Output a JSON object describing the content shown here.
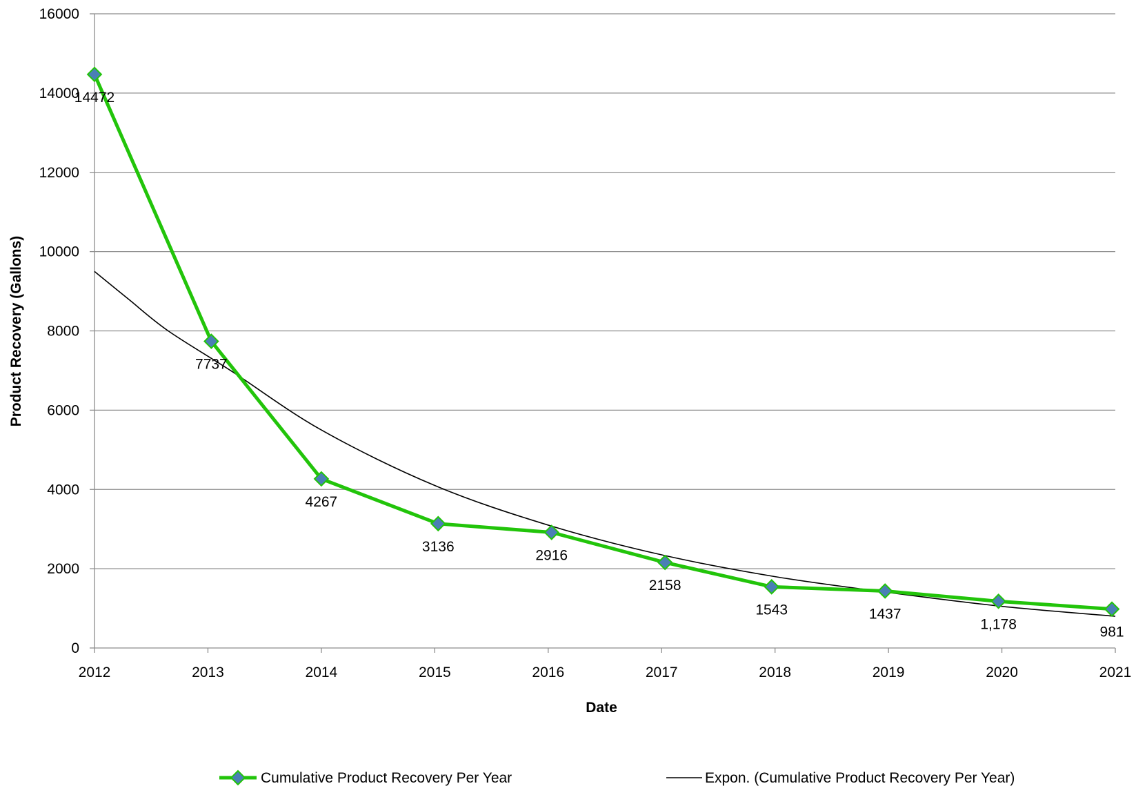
{
  "chart_data": {
    "type": "line",
    "x": [
      2012,
      2013,
      2014,
      2015,
      2016,
      2017,
      2018,
      2019,
      2020,
      2021
    ],
    "xlabel": "Date",
    "ylabel": "Product Recovery (Gallons)",
    "xlim": [
      2012,
      2021
    ],
    "ylim": [
      0,
      16000
    ],
    "y_ticks": [
      "0",
      "2000",
      "4000",
      "6000",
      "8000",
      "10000",
      "12000",
      "14000",
      "16000"
    ],
    "x_ticks": [
      "2012",
      "2013",
      "2014",
      "2015",
      "2016",
      "2017",
      "2018",
      "2019",
      "2020",
      "2021"
    ],
    "grid": true,
    "legend_position": "bottom",
    "series": [
      {
        "name": "Cumulative Product Recovery Per Year",
        "color": "#22c40a",
        "marker_color": "#4a7fb5",
        "points": [
          {
            "x": 2012.0,
            "y": 14472,
            "label": "14472"
          },
          {
            "x": 2013.03,
            "y": 7737,
            "label": "7737"
          },
          {
            "x": 2014.0,
            "y": 4267,
            "label": "4267"
          },
          {
            "x": 2015.03,
            "y": 3136,
            "label": "3136"
          },
          {
            "x": 2016.03,
            "y": 2916,
            "label": "2916"
          },
          {
            "x": 2017.03,
            "y": 2158,
            "label": "2158"
          },
          {
            "x": 2017.97,
            "y": 1543,
            "label": "1543"
          },
          {
            "x": 2018.97,
            "y": 1437,
            "label": "1437"
          },
          {
            "x": 2019.97,
            "y": 1178,
            "label": "1,178"
          },
          {
            "x": 2020.97,
            "y": 981,
            "label": "981"
          }
        ]
      },
      {
        "name": "Expon. (Cumulative Product Recovery Per Year)",
        "color": "#000000",
        "type": "trendline",
        "points": [
          {
            "x": 2012.0,
            "y": 9500
          },
          {
            "x": 2012.3,
            "y": 8800
          },
          {
            "x": 2012.65,
            "y": 8000
          },
          {
            "x": 2013.2,
            "y": 7000
          },
          {
            "x": 2014.0,
            "y": 5500
          },
          {
            "x": 2015.0,
            "y": 4100
          },
          {
            "x": 2016.0,
            "y": 3100
          },
          {
            "x": 2017.0,
            "y": 2350
          },
          {
            "x": 2018.0,
            "y": 1800
          },
          {
            "x": 2019.0,
            "y": 1400
          },
          {
            "x": 2020.0,
            "y": 1050
          },
          {
            "x": 2021.0,
            "y": 800
          }
        ]
      }
    ]
  }
}
